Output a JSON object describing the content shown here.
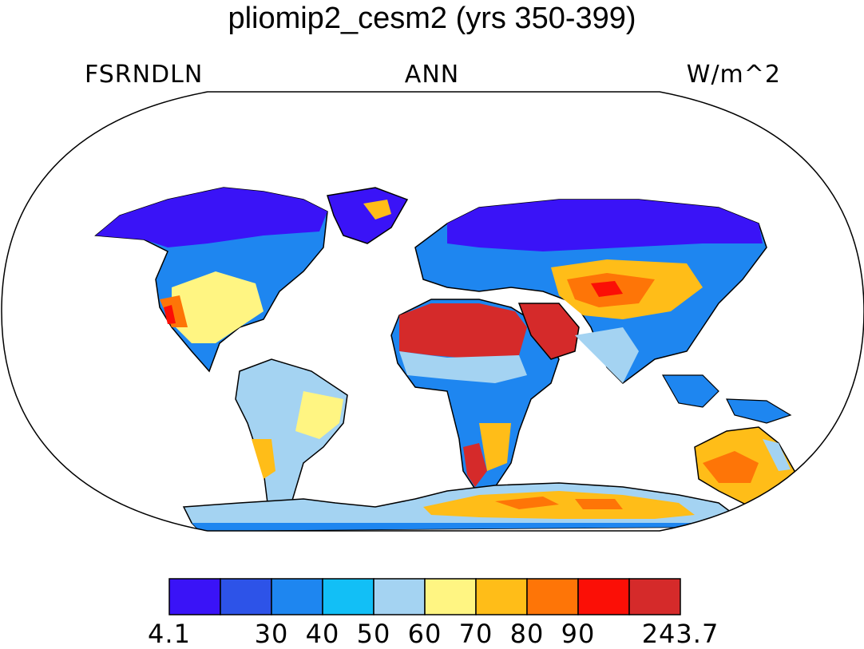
{
  "title": "pliomip2_cesm2 (yrs 350-399)",
  "variable": "FSRNDLN",
  "season": "ANN",
  "units": "W/m^2",
  "colorbar": {
    "colors": [
      "#3a13f7",
      "#2d53e8",
      "#1e86f0",
      "#12bff6",
      "#a4d3f2",
      "#fff582",
      "#ffbd18",
      "#fe7507",
      "#fb0f06",
      "#d52a2a"
    ],
    "ticks": [
      {
        "label": "4.1",
        "boundary": 0
      },
      {
        "label": "30",
        "boundary": 2
      },
      {
        "label": "40",
        "boundary": 3
      },
      {
        "label": "50",
        "boundary": 4
      },
      {
        "label": "60",
        "boundary": 5
      },
      {
        "label": "70",
        "boundary": 6
      },
      {
        "label": "80",
        "boundary": 7
      },
      {
        "label": "90",
        "boundary": 8
      },
      {
        "label": "243.7",
        "boundary": 10
      }
    ]
  },
  "map": {
    "projection": "robinson",
    "ocean_color": "#ffffff"
  }
}
